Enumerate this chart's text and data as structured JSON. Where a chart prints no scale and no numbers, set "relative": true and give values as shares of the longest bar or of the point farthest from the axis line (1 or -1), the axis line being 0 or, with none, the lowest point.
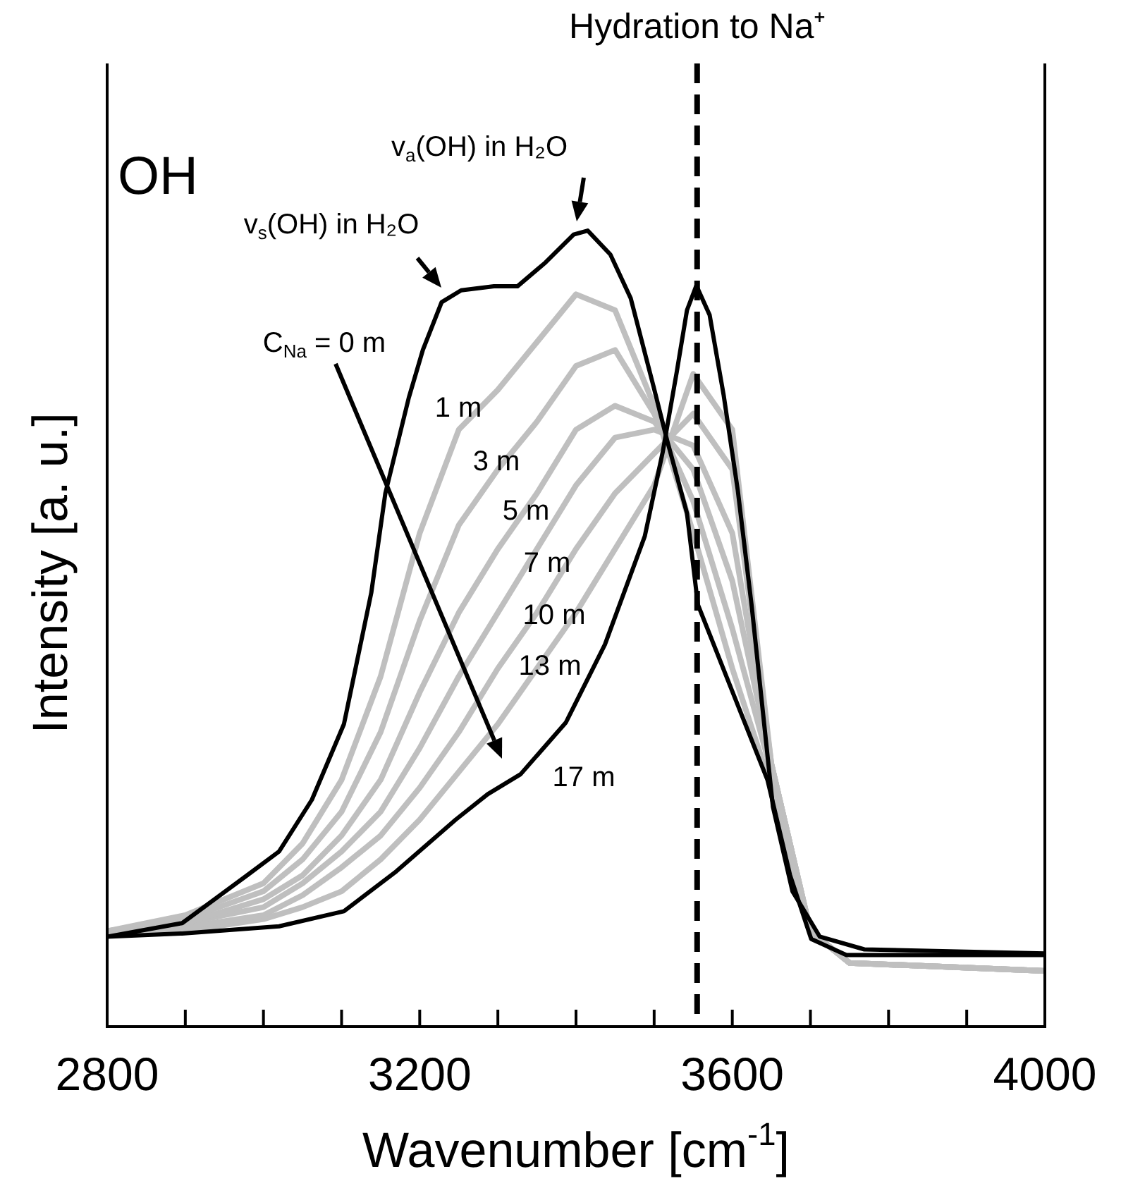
{
  "chart_data": {
    "type": "line",
    "relative": true,
    "xlabel": "Wavenumber [cm$^{-1}$]",
    "ylabel": "Intensity [a. u.]",
    "xlim": [
      2800,
      4000
    ],
    "xticks": [
      2800,
      {
        "value": 2900,
        "label": null
      },
      {
        "value": 3000,
        "label": null
      },
      {
        "value": 3100,
        "label": null
      },
      3200,
      {
        "value": 3300,
        "label": null
      },
      {
        "value": 3400,
        "label": null
      },
      {
        "value": 3500,
        "label": null
      },
      3600,
      {
        "value": 3700,
        "label": null
      },
      {
        "value": 3800,
        "label": null
      },
      {
        "value": 3900,
        "label": null
      },
      4000
    ],
    "grid": false,
    "legend": false,
    "marker": "none",
    "line_style": "solid",
    "tick_labels": "x",
    "series": [
      {
        "name": "C$_{Na}$ = 0 m",
        "color": "#000000",
        "x": [
          2800,
          2896,
          2979,
          3020,
          3062,
          3103,
          3138,
          3156,
          3186,
          3204,
          3228,
          3253,
          3295,
          3325,
          3361,
          3397,
          3415,
          3444,
          3470,
          3499,
          3517,
          3542,
          3556,
          3645,
          3674,
          3701,
          3746,
          4000
        ],
        "values": [
          0.113,
          0.13,
          0.19,
          0.22,
          0.285,
          0.38,
          0.545,
          0.67,
          0.79,
          0.85,
          0.91,
          0.925,
          0.93,
          0.93,
          0.96,
          0.995,
          1,
          0.97,
          0.915,
          0.805,
          0.735,
          0.645,
          0.53,
          0.31,
          0.19,
          0.11,
          0.09,
          0.09
        ]
      },
      {
        "name": "1 m",
        "color": "#bfbfbf",
        "x": [
          2800,
          2900,
          3000,
          3050,
          3100,
          3150,
          3200,
          3250,
          3300,
          3350,
          3400,
          3450,
          3500,
          3550,
          3600,
          3650,
          3700,
          3750,
          4000
        ],
        "values": [
          0.12,
          0.14,
          0.18,
          0.23,
          0.31,
          0.44,
          0.62,
          0.75,
          0.8,
          0.86,
          0.92,
          0.9,
          0.78,
          0.62,
          0.45,
          0.3,
          0.12,
          0.08,
          0.07
        ]
      },
      {
        "name": "3 m",
        "color": "#bfbfbf",
        "x": [
          2800,
          2900,
          3000,
          3050,
          3100,
          3150,
          3200,
          3250,
          3300,
          3350,
          3400,
          3450,
          3500,
          3550,
          3600,
          3650,
          3700,
          3750,
          4000
        ],
        "values": [
          0.12,
          0.135,
          0.17,
          0.21,
          0.27,
          0.37,
          0.51,
          0.63,
          0.7,
          0.76,
          0.83,
          0.85,
          0.77,
          0.66,
          0.5,
          0.32,
          0.12,
          0.08,
          0.07
        ]
      },
      {
        "name": "5 m",
        "color": "#bfbfbf",
        "x": [
          2800,
          2900,
          3000,
          3050,
          3100,
          3150,
          3200,
          3250,
          3300,
          3350,
          3400,
          3450,
          3500,
          3550,
          3600,
          3650,
          3700,
          3750,
          4000
        ],
        "values": [
          0.12,
          0.13,
          0.16,
          0.19,
          0.24,
          0.31,
          0.42,
          0.52,
          0.6,
          0.67,
          0.75,
          0.78,
          0.76,
          0.7,
          0.56,
          0.33,
          0.12,
          0.08,
          0.07
        ]
      },
      {
        "name": "7 m",
        "color": "#bfbfbf",
        "x": [
          2800,
          2900,
          3000,
          3050,
          3100,
          3150,
          3200,
          3250,
          3300,
          3350,
          3400,
          3450,
          3500,
          3550,
          3600,
          3650,
          3700,
          3750,
          4000
        ],
        "values": [
          0.12,
          0.13,
          0.15,
          0.18,
          0.22,
          0.27,
          0.35,
          0.44,
          0.52,
          0.6,
          0.68,
          0.74,
          0.75,
          0.73,
          0.62,
          0.33,
          0.12,
          0.08,
          0.07
        ]
      },
      {
        "name": "10 m",
        "color": "#bfbfbf",
        "x": [
          2800,
          2900,
          3000,
          3050,
          3100,
          3150,
          3200,
          3250,
          3300,
          3350,
          3400,
          3450,
          3500,
          3550,
          3600,
          3650,
          3700,
          3750,
          4000
        ],
        "values": [
          0.12,
          0.125,
          0.14,
          0.165,
          0.2,
          0.24,
          0.3,
          0.37,
          0.45,
          0.52,
          0.6,
          0.67,
          0.72,
          0.77,
          0.7,
          0.33,
          0.12,
          0.08,
          0.07
        ]
      },
      {
        "name": "13 m",
        "color": "#bfbfbf",
        "x": [
          2800,
          2900,
          3000,
          3050,
          3100,
          3150,
          3200,
          3250,
          3300,
          3350,
          3400,
          3450,
          3500,
          3550,
          3600,
          3650,
          3700,
          3750,
          4000
        ],
        "values": [
          0.115,
          0.12,
          0.135,
          0.15,
          0.17,
          0.21,
          0.26,
          0.32,
          0.38,
          0.45,
          0.52,
          0.6,
          0.68,
          0.82,
          0.75,
          0.33,
          0.12,
          0.08,
          0.07
        ]
      },
      {
        "name": "17 m",
        "color": "#000000",
        "x": [
          2800,
          2896,
          3020,
          3103,
          3170,
          3246,
          3287,
          3329,
          3387,
          3437,
          3488,
          3511,
          3529,
          3542,
          3554,
          3571,
          3589,
          3607,
          3625,
          3652,
          3677,
          3712,
          3769,
          4000
        ],
        "values": [
          0.113,
          0.117,
          0.126,
          0.145,
          0.195,
          0.26,
          0.292,
          0.317,
          0.382,
          0.48,
          0.616,
          0.722,
          0.823,
          0.9,
          0.931,
          0.894,
          0.793,
          0.674,
          0.527,
          0.276,
          0.17,
          0.113,
          0.097,
          0.092
        ]
      }
    ],
    "ref_lines": [
      {
        "axis": "x",
        "value": 3555,
        "label": "Hydration to Na⁺",
        "color": "#000000",
        "line_style": "dashed"
      }
    ],
    "annotations": [
      "OH",
      "v$_{s}$(OH) in H₂O",
      "v$_{a}$(OH) in H₂O"
    ]
  }
}
